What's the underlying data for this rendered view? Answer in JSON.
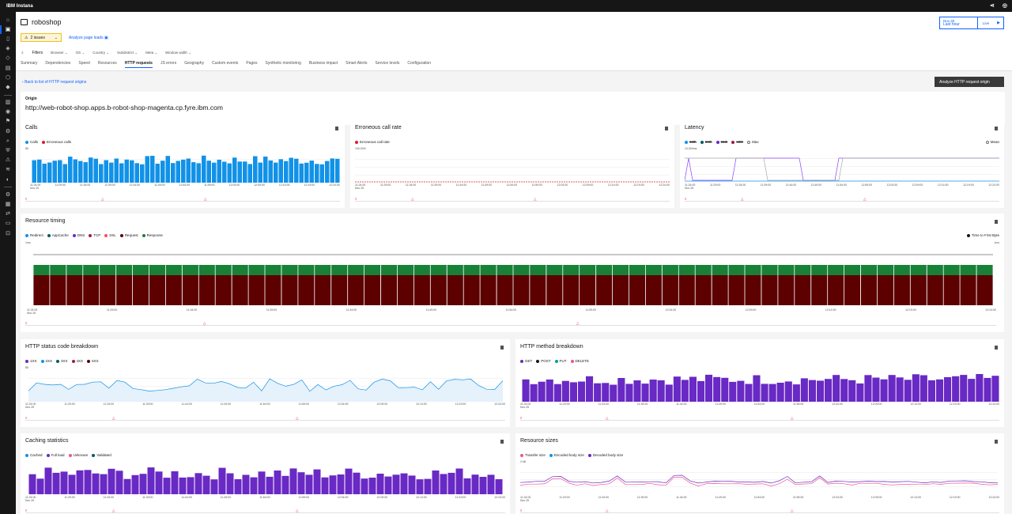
{
  "topbar": {
    "title": "IBM Instana"
  },
  "app": {
    "name": "roboshop"
  },
  "header": {
    "issues": "2 issues",
    "analyze_page_loads": "Analyze page loads",
    "time_date": "Nov 25",
    "time_range": "Last hour",
    "live_label": "Live",
    "filters_label": "Filters",
    "filters": [
      "Browser",
      "OS",
      "Country",
      "Subdistrict",
      "Meta",
      "Window width"
    ],
    "tabs": [
      "Summary",
      "Dependencies",
      "Speed",
      "Resources",
      "HTTP requests",
      "JS errors",
      "Geography",
      "Custom events",
      "Pages",
      "Synthetic monitoring",
      "Business impact",
      "Smart Alerts",
      "Service levels",
      "Configuration"
    ],
    "active_tab": "HTTP requests"
  },
  "back_link": "Back to list of HTTP request origins",
  "analyze_origin_button": "Analyze HTTP request origin",
  "origin": {
    "label": "Origin",
    "value": "http://web-robot-shop.apps.b-robot-shop-magenta.cp.fyre.ibm.com"
  },
  "colors": {
    "calls": "#1192e8",
    "errors": "#da1e28",
    "purple": "#6929c4",
    "green": "#198038",
    "darkred": "#5c0000",
    "pink": "#ee5396"
  },
  "x_ticks_short": [
    "11:24:00",
    "11:29:00",
    "11:34:00",
    "11:39:00",
    "11:44:00",
    "11:49:00",
    "11:54:00",
    "11:59:00",
    "12:04:00",
    "12:09:00",
    "12:14:00",
    "12:19:00",
    "12:24:00"
  ],
  "x_first_sub": "Nov 25",
  "cards": {
    "calls": {
      "title": "Calls",
      "legend": [
        "Calls",
        "Erroneous calls"
      ],
      "ytop": "$5"
    },
    "erroneous": {
      "title": "Erroneous call rate",
      "legend": [
        "Erroneous call rate"
      ],
      "ytop": "100.00%"
    },
    "latency": {
      "title": "Latency",
      "legend": [
        "50th",
        "90th",
        "95th",
        "99th",
        "Max"
      ],
      "legend_right": "Mean",
      "ytop": "10,000ms"
    },
    "timing": {
      "title": "Resource timing",
      "legend": [
        "Redirect",
        "AppCache",
        "DNS",
        "TCP",
        "SSL",
        "Request",
        "Response"
      ],
      "legend_right": "Time to First Byte",
      "ytop_left": "1ms",
      "ytop_right": "1ms"
    },
    "status": {
      "title": "HTTP status code breakdown",
      "legend": [
        "1XX",
        "2XX",
        "3XX",
        "4XX",
        "5XX"
      ],
      "ytop": "$5"
    },
    "method": {
      "title": "HTTP method breakdown",
      "legend": [
        "GET",
        "POST",
        "PUT",
        "DELETE"
      ]
    },
    "caching": {
      "title": "Caching statistics",
      "legend": [
        "Cached",
        "Full load",
        "Unknown",
        "Validated"
      ]
    },
    "sizes": {
      "title": "Resource sizes",
      "legend": [
        "Transfer size",
        "Encoded body size",
        "Decoded body size"
      ],
      "ytop": "2 kB"
    }
  }
}
